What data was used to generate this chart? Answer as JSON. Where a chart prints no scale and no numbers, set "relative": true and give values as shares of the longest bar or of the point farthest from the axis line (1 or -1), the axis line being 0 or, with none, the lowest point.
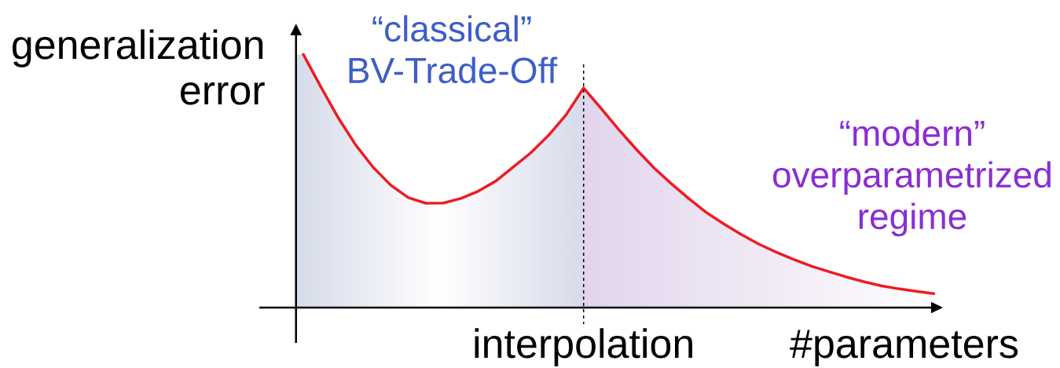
{
  "chart_data": {
    "type": "line",
    "xlabel": "#parameters",
    "ylabel": "generalization error",
    "relative": true,
    "line_style": "solid",
    "categories": [
      null,
      null,
      null,
      null,
      null,
      null,
      null,
      null,
      null,
      null,
      null,
      null,
      null,
      null,
      null,
      null,
      null,
      null,
      null,
      null,
      null,
      null,
      null,
      null,
      null,
      null,
      null,
      null,
      null,
      null,
      null,
      null,
      null,
      null,
      null,
      null,
      null
    ],
    "series": [
      {
        "color": "#ec1c24",
        "values": [
          1.0,
          0.872,
          0.749,
          0.641,
          0.553,
          0.483,
          0.434,
          0.412,
          0.413,
          0.431,
          0.46,
          0.5,
          0.556,
          0.612,
          0.68,
          0.761,
          0.867,
          0.787,
          0.704,
          0.626,
          0.553,
          0.49,
          0.431,
          0.376,
          0.331,
          0.289,
          0.251,
          0.219,
          0.19,
          0.164,
          0.142,
          0.121,
          0.102,
          0.086,
          0.074,
          0.064,
          0.055
        ]
      }
    ],
    "annotations": [
      "“classical” BV-Trade-Off",
      "“modern” overparametrized regime",
      "interpolation"
    ]
  }
}
